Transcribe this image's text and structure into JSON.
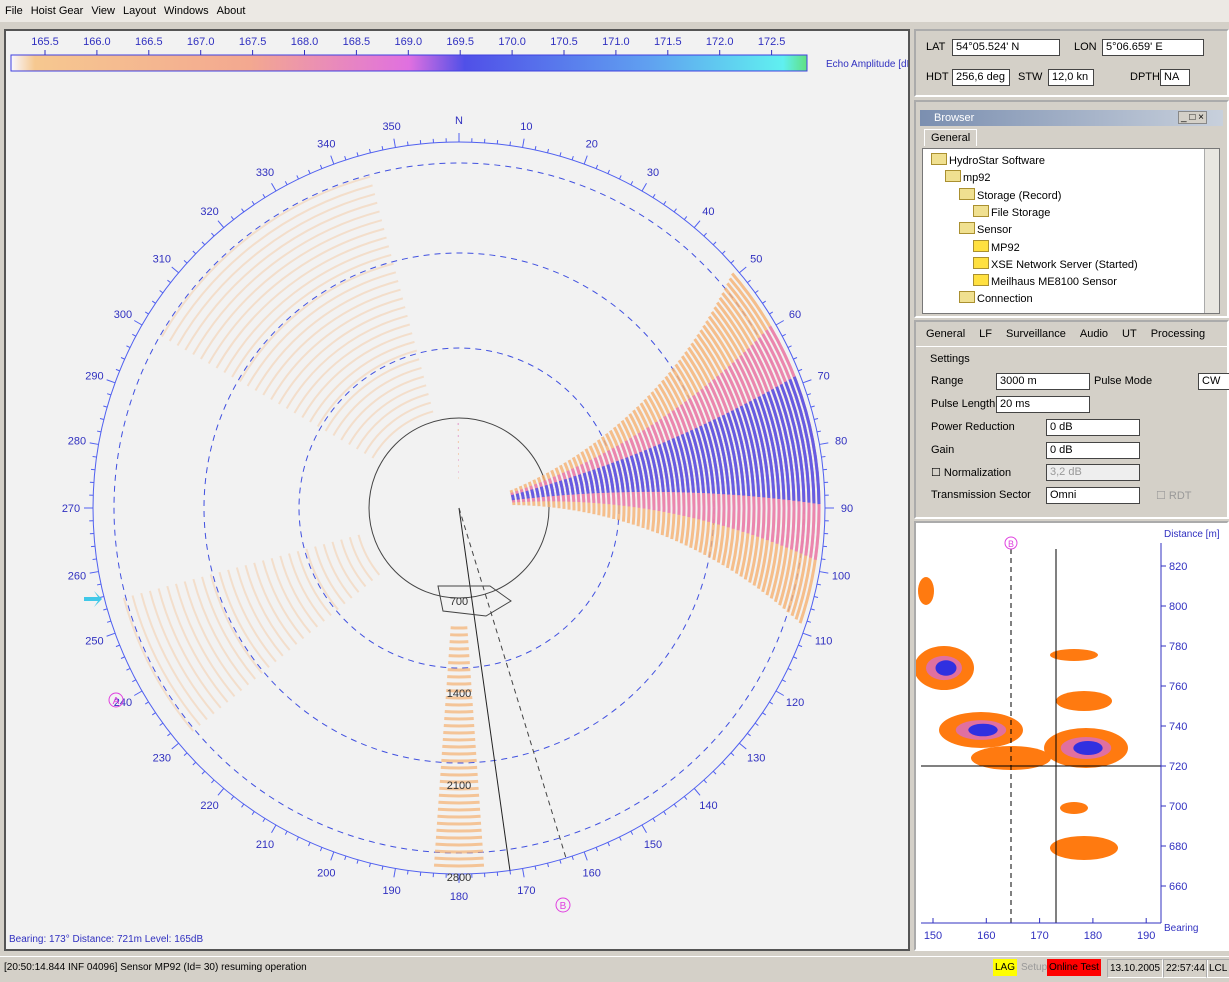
{
  "menu": [
    "File",
    "Hoist Gear",
    "View",
    "Layout",
    "Windows",
    "About"
  ],
  "sonar": {
    "colorbar_ticks": [
      "165.5",
      "166.0",
      "166.5",
      "167.0",
      "167.5",
      "168.0",
      "168.5",
      "169.0",
      "169.5",
      "170.0",
      "170.5",
      "171.0",
      "171.5",
      "172.0",
      "172.5"
    ],
    "colorbar_label": "Echo Amplitude [dB]",
    "bearings": [
      "N",
      "10",
      "20",
      "30",
      "40",
      "50",
      "60",
      "70",
      "80",
      "90",
      "100",
      "110",
      "120",
      "130",
      "140",
      "150",
      "160",
      "170",
      "180",
      "190",
      "200",
      "210",
      "220",
      "230",
      "240",
      "250",
      "260",
      "270",
      "280",
      "290",
      "300",
      "310",
      "320",
      "330",
      "340",
      "350"
    ],
    "ranges": [
      "700",
      "1400",
      "2100",
      "2800"
    ],
    "marker_a": "A",
    "marker_b": "B",
    "status": "Bearing: 173°  Distance:  721m  Level: 165dB"
  },
  "nav": {
    "lat_label": "LAT",
    "lat": "54°05.524' N",
    "lon_label": "LON",
    "lon": "5°06.659' E",
    "hdt_label": "HDT",
    "hdt": "256,6 deg",
    "stw_label": "STW",
    "stw": "12,0 kn",
    "dpth_label": "DPTH",
    "dpth": "NA"
  },
  "browser": {
    "title": "Browser",
    "tab": "General",
    "tree": [
      "HydroStar Software",
      "mp92",
      "Storage (Record)",
      "File Storage",
      "Sensor",
      "MP92",
      "XSE Network Server (Started)",
      "Meilhaus ME8100 Sensor",
      "Connection"
    ]
  },
  "settings": {
    "tabs": [
      "General",
      "LF",
      "Surveillance",
      "Audio",
      "UT",
      "Processing"
    ],
    "group": "Settings",
    "range_label": "Range",
    "range": "3000 m",
    "pulse_mode_label": "Pulse Mode",
    "pulse_mode": "CW",
    "pulse_length_label": "Pulse Length",
    "pulse_length": "20 ms",
    "power_label": "Power Reduction",
    "power": "0 dB",
    "gain_label": "Gain",
    "gain": "0 dB",
    "norm_label": "Normalization",
    "norm": "3,2 dB",
    "sector_label": "Transmission Sector",
    "sector": "Omni",
    "rdt": "RDT"
  },
  "waterfall": {
    "y_label": "Distance [m]",
    "yticks": [
      "820",
      "800",
      "780",
      "760",
      "740",
      "720",
      "700",
      "680",
      "660"
    ],
    "x_label": "Bearing",
    "xticks": [
      "150",
      "160",
      "170",
      "180",
      "190"
    ],
    "marker": "B"
  },
  "statusbar": {
    "message": "[20:50:14.844 INF 04096] Sensor MP92 (Id= 30) resuming operation",
    "lag": "LAG",
    "setup": "Setup",
    "online": "Online Test",
    "date": "13.10.2005",
    "time": "22:57:44",
    "lcl": "LCL"
  }
}
